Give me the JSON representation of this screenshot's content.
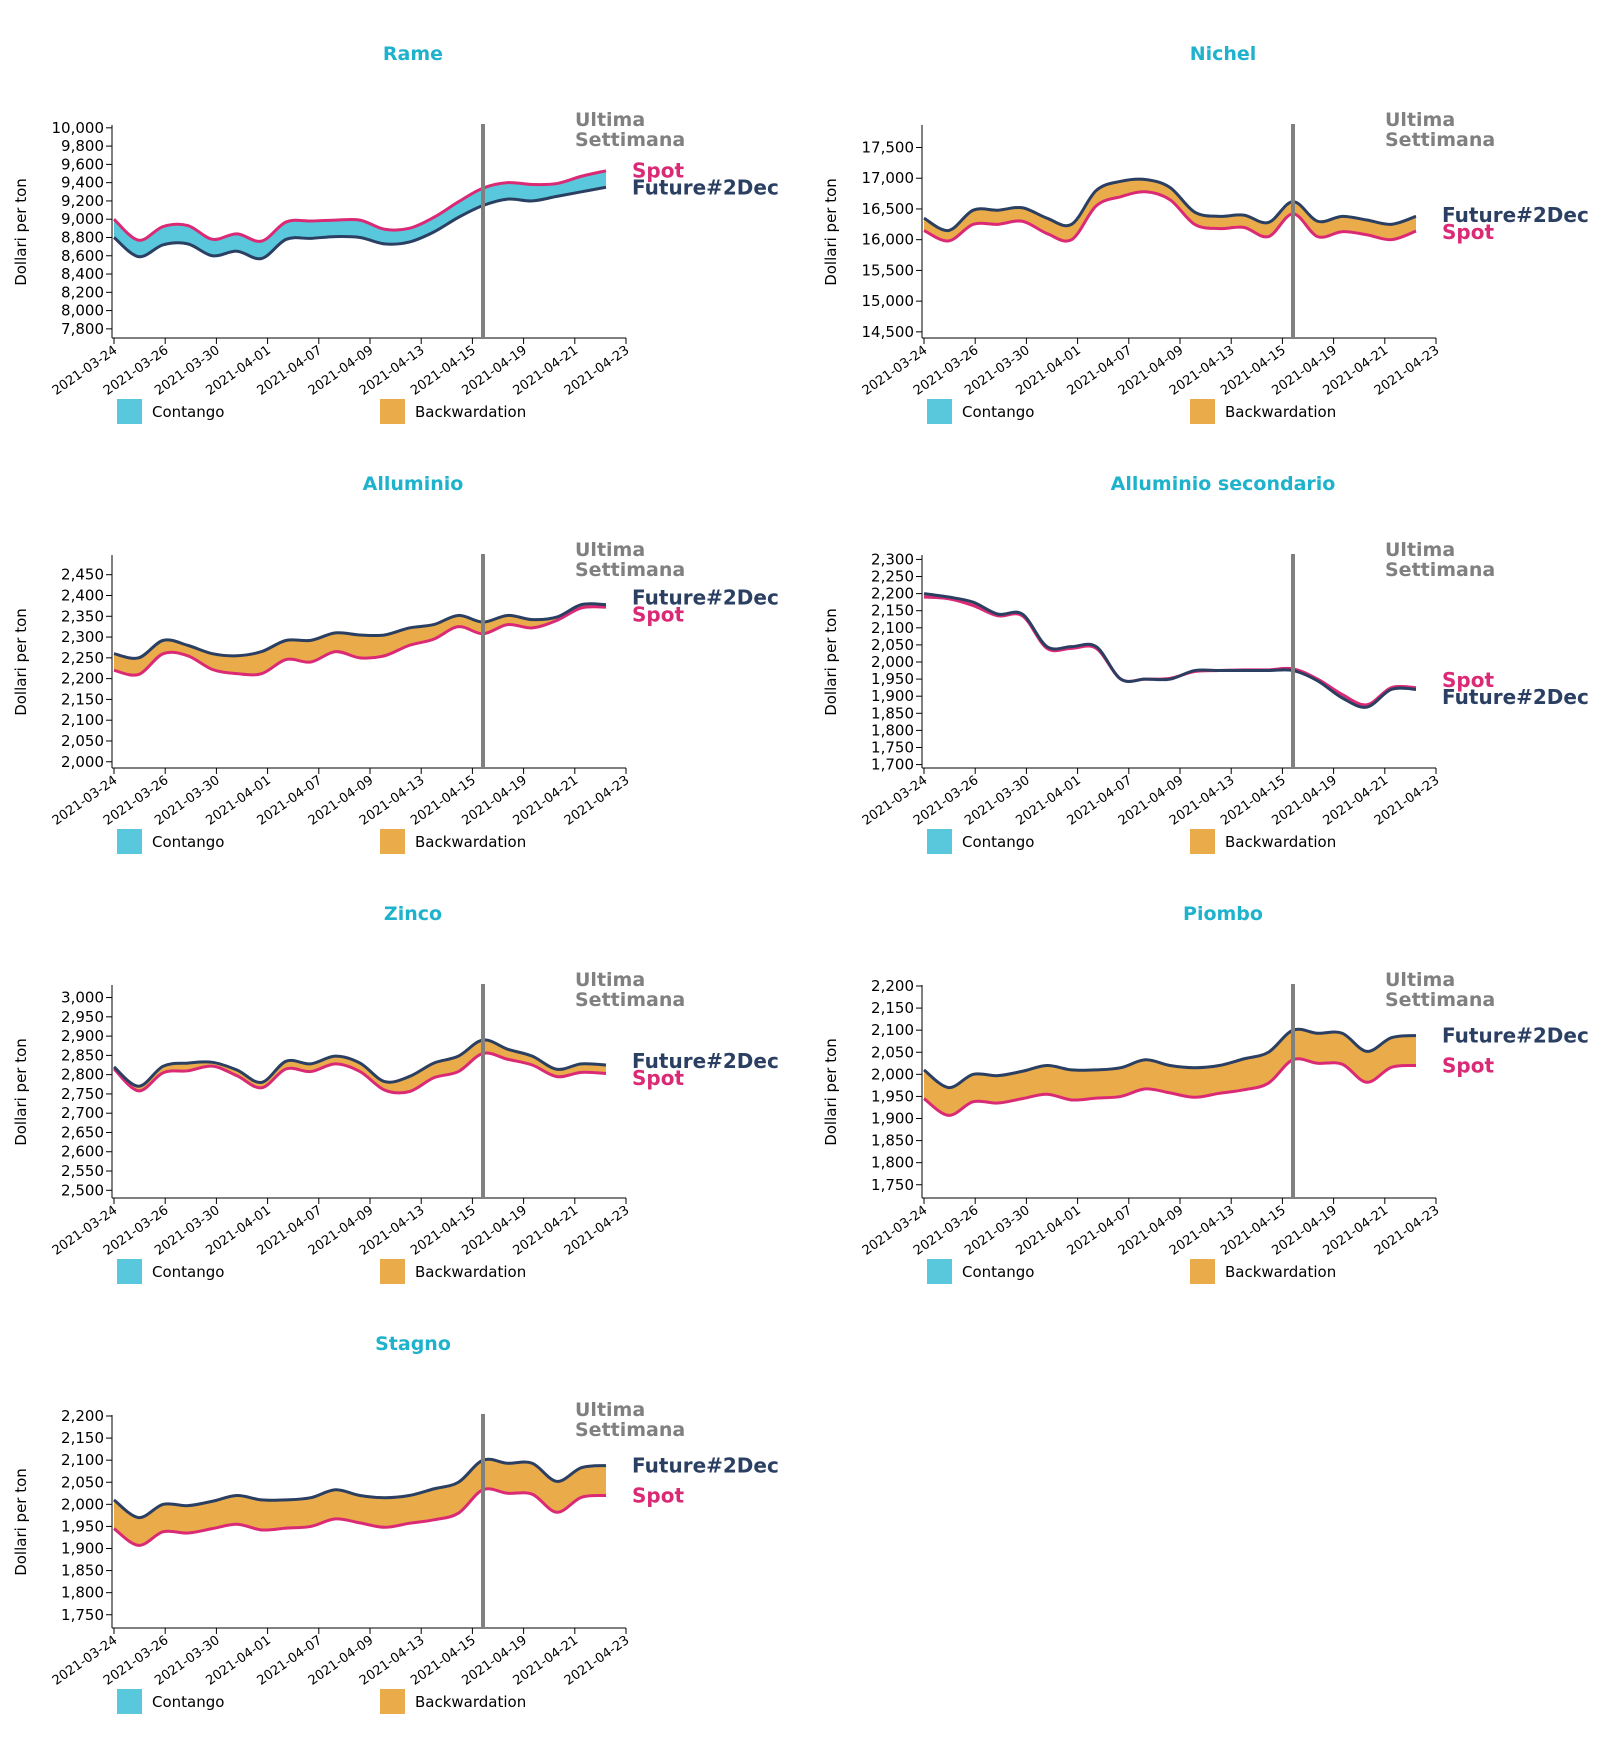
{
  "legend": {
    "contango_label": "Contango",
    "backwardation_label": "Backwardation"
  },
  "colors": {
    "title": "#1fb2cc",
    "future": "#2a3f62",
    "spot": "#db2a75",
    "contango": "#5ac8dc",
    "backwardation": "#eaab4a",
    "last_week": "#808080"
  },
  "y_axis_label": "Dollari per ton",
  "last_week_label": [
    "Ultima",
    "Settimana"
  ],
  "future_label": "Future#2Dec",
  "spot_label": "Spot",
  "chart_data": [
    {
      "type": "area",
      "title": "Rame",
      "xlabel": "",
      "ylabel": "Dollari per ton",
      "x": [
        "2021-03-24",
        "2021-03-25",
        "2021-03-26",
        "2021-03-29",
        "2021-03-30",
        "2021-03-31",
        "2021-04-01",
        "2021-04-06",
        "2021-04-07",
        "2021-04-08",
        "2021-04-09",
        "2021-04-12",
        "2021-04-13",
        "2021-04-14",
        "2021-04-15",
        "2021-04-16",
        "2021-04-19",
        "2021-04-20",
        "2021-04-21",
        "2021-04-22",
        "2021-04-23"
      ],
      "x_ticks": [
        "2021-03-24",
        "2021-03-26",
        "2021-03-30",
        "2021-04-01",
        "2021-04-07",
        "2021-04-09",
        "2021-04-13",
        "2021-04-15",
        "2021-04-19",
        "2021-04-21",
        "2021-04-23"
      ],
      "yticks": [
        7800,
        8000,
        8200,
        8400,
        8600,
        8800,
        9000,
        9200,
        9400,
        9600,
        9800,
        10000
      ],
      "ylim": [
        7700,
        10020
      ],
      "last_week_index": 15,
      "series": [
        {
          "name": "Future#2Dec",
          "values": [
            8800,
            8590,
            8720,
            8730,
            8600,
            8650,
            8570,
            8780,
            8790,
            8810,
            8800,
            8730,
            8750,
            8860,
            9020,
            9150,
            9220,
            9200,
            9250,
            9300,
            9350
          ]
        },
        {
          "name": "Spot",
          "values": [
            9000,
            8770,
            8920,
            8930,
            8780,
            8840,
            8760,
            8970,
            8980,
            8990,
            8990,
            8890,
            8900,
            9020,
            9190,
            9340,
            9400,
            9380,
            9390,
            9470,
            9530
          ]
        }
      ]
    },
    {
      "type": "area",
      "title": "Nichel",
      "xlabel": "",
      "ylabel": "Dollari per ton",
      "x": [
        "2021-03-24",
        "2021-03-25",
        "2021-03-26",
        "2021-03-29",
        "2021-03-30",
        "2021-03-31",
        "2021-04-01",
        "2021-04-06",
        "2021-04-07",
        "2021-04-08",
        "2021-04-09",
        "2021-04-12",
        "2021-04-13",
        "2021-04-14",
        "2021-04-15",
        "2021-04-16",
        "2021-04-19",
        "2021-04-20",
        "2021-04-21",
        "2021-04-22",
        "2021-04-23"
      ],
      "x_ticks": [
        "2021-03-24",
        "2021-03-26",
        "2021-03-30",
        "2021-04-01",
        "2021-04-07",
        "2021-04-09",
        "2021-04-13",
        "2021-04-15",
        "2021-04-19",
        "2021-04-21",
        "2021-04-23"
      ],
      "yticks": [
        14500,
        15000,
        15500,
        16000,
        16500,
        17000,
        17500
      ],
      "ylim": [
        14400,
        17850
      ],
      "last_week_index": 15,
      "series": [
        {
          "name": "Future#2Dec",
          "values": [
            16350,
            16150,
            16480,
            16480,
            16520,
            16350,
            16250,
            16800,
            16950,
            16980,
            16850,
            16450,
            16380,
            16400,
            16280,
            16620,
            16300,
            16380,
            16320,
            16250,
            16380
          ]
        },
        {
          "name": "Spot",
          "values": [
            16150,
            15980,
            16250,
            16250,
            16300,
            16100,
            16000,
            16550,
            16700,
            16780,
            16650,
            16250,
            16180,
            16200,
            16050,
            16420,
            16050,
            16130,
            16080,
            16000,
            16140
          ]
        }
      ]
    },
    {
      "type": "area",
      "title": "Alluminio",
      "xlabel": "",
      "ylabel": "Dollari per ton",
      "x": [
        "2021-03-24",
        "2021-03-25",
        "2021-03-26",
        "2021-03-29",
        "2021-03-30",
        "2021-03-31",
        "2021-04-01",
        "2021-04-06",
        "2021-04-07",
        "2021-04-08",
        "2021-04-09",
        "2021-04-12",
        "2021-04-13",
        "2021-04-14",
        "2021-04-15",
        "2021-04-16",
        "2021-04-19",
        "2021-04-20",
        "2021-04-21",
        "2021-04-22",
        "2021-04-23"
      ],
      "x_ticks": [
        "2021-03-24",
        "2021-03-26",
        "2021-03-30",
        "2021-04-01",
        "2021-04-07",
        "2021-04-09",
        "2021-04-13",
        "2021-04-15",
        "2021-04-19",
        "2021-04-21",
        "2021-04-23"
      ],
      "yticks": [
        2000,
        2050,
        2100,
        2150,
        2200,
        2250,
        2300,
        2350,
        2400,
        2450
      ],
      "ylim": [
        1985,
        2495
      ],
      "last_week_index": 15,
      "series": [
        {
          "name": "Future#2Dec",
          "values": [
            2260,
            2250,
            2292,
            2280,
            2260,
            2255,
            2265,
            2292,
            2292,
            2310,
            2305,
            2305,
            2322,
            2330,
            2352,
            2336,
            2352,
            2342,
            2348,
            2378,
            2378
          ]
        },
        {
          "name": "Spot",
          "values": [
            2220,
            2210,
            2260,
            2255,
            2222,
            2212,
            2212,
            2246,
            2240,
            2265,
            2250,
            2255,
            2280,
            2295,
            2325,
            2308,
            2330,
            2322,
            2340,
            2370,
            2372
          ]
        }
      ]
    },
    {
      "type": "area",
      "title": "Alluminio secondario",
      "xlabel": "",
      "ylabel": "Dollari per ton",
      "x": [
        "2021-03-24",
        "2021-03-25",
        "2021-03-26",
        "2021-03-29",
        "2021-03-30",
        "2021-03-31",
        "2021-04-01",
        "2021-04-06",
        "2021-04-07",
        "2021-04-08",
        "2021-04-09",
        "2021-04-12",
        "2021-04-13",
        "2021-04-14",
        "2021-04-15",
        "2021-04-16",
        "2021-04-19",
        "2021-04-20",
        "2021-04-21",
        "2021-04-22",
        "2021-04-23"
      ],
      "x_ticks": [
        "2021-03-24",
        "2021-03-26",
        "2021-03-30",
        "2021-04-01",
        "2021-04-07",
        "2021-04-09",
        "2021-04-13",
        "2021-04-15",
        "2021-04-19",
        "2021-04-21",
        "2021-04-23"
      ],
      "yticks": [
        1700,
        1750,
        1800,
        1850,
        1900,
        1950,
        2000,
        2050,
        2100,
        2150,
        2200,
        2250,
        2300
      ],
      "ylim": [
        1690,
        2310
      ],
      "last_week_index": 15,
      "series": [
        {
          "name": "Future#2Dec",
          "values": [
            2200,
            2190,
            2175,
            2140,
            2140,
            2045,
            2045,
            2045,
            1950,
            1950,
            1950,
            1975,
            1975,
            1975,
            1975,
            1975,
            1945,
            1895,
            1868,
            1920,
            1920
          ]
        },
        {
          "name": "Spot",
          "values": [
            2190,
            2185,
            2165,
            2135,
            2135,
            2040,
            2040,
            2040,
            1950,
            1950,
            1952,
            1972,
            1975,
            1977,
            1977,
            1980,
            1950,
            1905,
            1875,
            1925,
            1925
          ]
        }
      ]
    },
    {
      "type": "area",
      "title": "Zinco",
      "xlabel": "",
      "ylabel": "Dollari per ton",
      "x": [
        "2021-03-24",
        "2021-03-25",
        "2021-03-26",
        "2021-03-29",
        "2021-03-30",
        "2021-03-31",
        "2021-04-01",
        "2021-04-06",
        "2021-04-07",
        "2021-04-08",
        "2021-04-09",
        "2021-04-12",
        "2021-04-13",
        "2021-04-14",
        "2021-04-15",
        "2021-04-16",
        "2021-04-19",
        "2021-04-20",
        "2021-04-21",
        "2021-04-22",
        "2021-04-23"
      ],
      "x_ticks": [
        "2021-03-24",
        "2021-03-26",
        "2021-03-30",
        "2021-04-01",
        "2021-04-07",
        "2021-04-09",
        "2021-04-13",
        "2021-04-15",
        "2021-04-19",
        "2021-04-21",
        "2021-04-23"
      ],
      "yticks": [
        2500,
        2550,
        2600,
        2650,
        2700,
        2750,
        2800,
        2850,
        2900,
        2950,
        3000
      ],
      "ylim": [
        2480,
        3030
      ],
      "last_week_index": 15,
      "series": [
        {
          "name": "Future#2Dec",
          "values": [
            2820,
            2770,
            2822,
            2830,
            2832,
            2812,
            2780,
            2835,
            2828,
            2848,
            2830,
            2782,
            2795,
            2830,
            2848,
            2890,
            2866,
            2848,
            2814,
            2828,
            2825
          ]
        },
        {
          "name": "Spot",
          "values": [
            2815,
            2758,
            2805,
            2810,
            2822,
            2797,
            2766,
            2815,
            2808,
            2828,
            2808,
            2760,
            2756,
            2792,
            2808,
            2855,
            2840,
            2825,
            2795,
            2806,
            2803
          ]
        }
      ]
    },
    {
      "type": "area",
      "title": "Piombo",
      "xlabel": "",
      "ylabel": "Dollari per ton",
      "x": [
        "2021-03-24",
        "2021-03-25",
        "2021-03-26",
        "2021-03-29",
        "2021-03-30",
        "2021-03-31",
        "2021-04-01",
        "2021-04-06",
        "2021-04-07",
        "2021-04-08",
        "2021-04-09",
        "2021-04-12",
        "2021-04-13",
        "2021-04-14",
        "2021-04-15",
        "2021-04-16",
        "2021-04-19",
        "2021-04-20",
        "2021-04-21",
        "2021-04-22",
        "2021-04-23"
      ],
      "x_ticks": [
        "2021-03-24",
        "2021-03-26",
        "2021-03-30",
        "2021-04-01",
        "2021-04-07",
        "2021-04-09",
        "2021-04-13",
        "2021-04-15",
        "2021-04-19",
        "2021-04-21",
        "2021-04-23"
      ],
      "yticks": [
        1750,
        1800,
        1850,
        1900,
        1950,
        2000,
        2050,
        2100,
        2150,
        2200
      ],
      "ylim": [
        1720,
        2200
      ],
      "last_week_index": 15,
      "series": [
        {
          "name": "Future#2Dec",
          "values": [
            2010,
            1970,
            2000,
            1997,
            2007,
            2020,
            2010,
            2010,
            2015,
            2033,
            2020,
            2015,
            2020,
            2035,
            2050,
            2100,
            2093,
            2093,
            2052,
            2083,
            2088
          ]
        },
        {
          "name": "Spot",
          "values": [
            1945,
            1907,
            1938,
            1935,
            1945,
            1955,
            1942,
            1946,
            1950,
            1967,
            1958,
            1948,
            1957,
            1965,
            1980,
            2033,
            2025,
            2023,
            1982,
            2016,
            2020
          ]
        }
      ]
    },
    {
      "type": "area",
      "title": "Stagno",
      "xlabel": "",
      "ylabel": "Dollari per ton",
      "x": [
        "2021-03-24",
        "2021-03-25",
        "2021-03-26",
        "2021-03-29",
        "2021-03-30",
        "2021-03-31",
        "2021-04-01",
        "2021-04-06",
        "2021-04-07",
        "2021-04-08",
        "2021-04-09",
        "2021-04-12",
        "2021-04-13",
        "2021-04-14",
        "2021-04-15",
        "2021-04-16",
        "2021-04-19",
        "2021-04-20",
        "2021-04-21",
        "2021-04-22",
        "2021-04-23"
      ],
      "x_ticks": [
        "2021-03-24",
        "2021-03-26",
        "2021-03-30",
        "2021-04-01",
        "2021-04-07",
        "2021-04-09",
        "2021-04-13",
        "2021-04-15",
        "2021-04-19",
        "2021-04-21",
        "2021-04-23"
      ],
      "yticks": [
        1750,
        1800,
        1850,
        1900,
        1950,
        2000,
        2050,
        2100,
        2150,
        2200
      ],
      "ylim": [
        1720,
        2200
      ],
      "last_week_index": 15,
      "series": [
        {
          "name": "Future#2Dec",
          "values": [
            2010,
            1970,
            2000,
            1997,
            2007,
            2020,
            2010,
            2010,
            2015,
            2033,
            2020,
            2015,
            2020,
            2035,
            2050,
            2100,
            2093,
            2093,
            2052,
            2083,
            2088
          ]
        },
        {
          "name": "Spot",
          "values": [
            1945,
            1907,
            1938,
            1935,
            1945,
            1955,
            1942,
            1946,
            1950,
            1967,
            1958,
            1948,
            1957,
            1965,
            1980,
            2033,
            2025,
            2023,
            1982,
            2016,
            2020
          ]
        }
      ]
    }
  ]
}
